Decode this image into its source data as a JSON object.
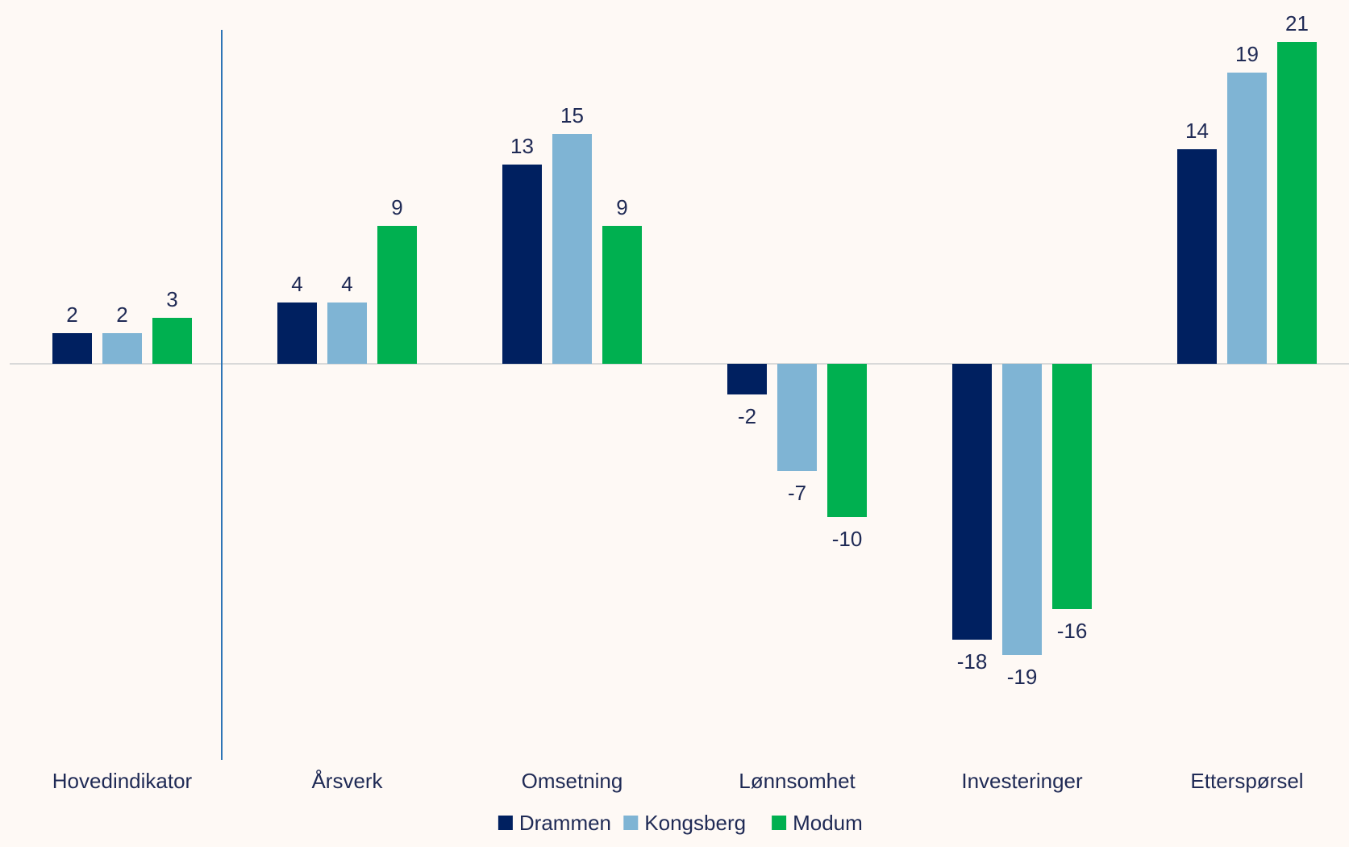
{
  "chart_data": {
    "type": "bar",
    "title": "",
    "xlabel": "",
    "ylabel": "",
    "categories": [
      "Hovedindikator",
      "Årsverk",
      "Omsetning",
      "Lønnsomhet",
      "Investeringer",
      "Etterspørsel"
    ],
    "series": [
      {
        "name": "Drammen",
        "color": "#002060",
        "values": [
          2,
          4,
          13,
          -2,
          -18,
          14
        ]
      },
      {
        "name": "Kongsberg",
        "color": "#7FB4D4",
        "values": [
          2,
          4,
          15,
          -7,
          -19,
          19
        ]
      },
      {
        "name": "Modum",
        "color": "#00B050",
        "values": [
          3,
          9,
          9,
          -10,
          -16,
          21
        ]
      }
    ],
    "ylim": [
      -26,
      22
    ],
    "grid": false,
    "legend_position": "bottom",
    "colors": {
      "background": "#FEF9F5",
      "label_text": "#1F2A55",
      "zero_line": "#D9D9D9",
      "separator_line": "#2E75B6"
    }
  }
}
